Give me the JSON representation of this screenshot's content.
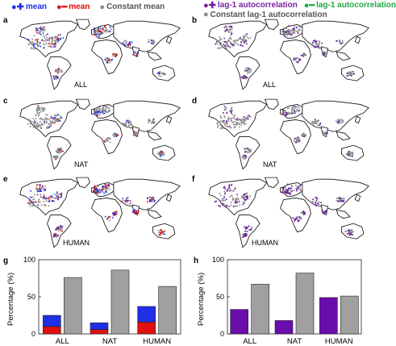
{
  "legend": {
    "left": [
      {
        "glyph": "●✚",
        "label": "mean",
        "color": "#1f2fe6"
      },
      {
        "glyph": "●━",
        "label": "mean",
        "color": "#e01010"
      },
      {
        "glyph": "●",
        "label": "Constant mean",
        "color": "#8c8c8c"
      }
    ],
    "right_row1": [
      {
        "glyph": "●✚",
        "label": "lag-1 autocorrelation",
        "color": "#7b1fa2"
      },
      {
        "glyph": "●━",
        "label": "lag-1 autocorrelation",
        "color": "#22aa44"
      }
    ],
    "right_row2": [
      {
        "glyph": "●",
        "label": "Constant lag-1 autocorrelation",
        "color": "#8c8c8c"
      }
    ]
  },
  "panels": [
    {
      "letter": "a",
      "scenario": "ALL",
      "variant": "mean"
    },
    {
      "letter": "b",
      "scenario": "ALL",
      "variant": "ac"
    },
    {
      "letter": "c",
      "scenario": "NAT",
      "variant": "mean"
    },
    {
      "letter": "d",
      "scenario": "NAT",
      "variant": "ac"
    },
    {
      "letter": "e",
      "scenario": "HUMAN",
      "variant": "mean"
    },
    {
      "letter": "f",
      "scenario": "HUMAN",
      "variant": "ac"
    }
  ],
  "colors": {
    "increase_mean": "#1f2fe6",
    "decrease_mean": "#e01010",
    "constant": "#8c8c8c",
    "increase_ac": "#6a1aa0",
    "bar_edge": "#222222"
  },
  "bar_panels": {
    "g": {
      "letter": "g",
      "ylabel": "Percentage (%)",
      "yticks": [
        "0",
        "50",
        "100"
      ]
    },
    "h": {
      "letter": "h",
      "ylabel": "Percentage (%)",
      "yticks": [
        "0",
        "50",
        "100"
      ]
    }
  },
  "chart_data": [
    {
      "type": "bar",
      "panel": "g",
      "categories": [
        "ALL",
        "NAT",
        "HUMAN"
      ],
      "ylabel": "Percentage (%)",
      "ylim": [
        0,
        100
      ],
      "series": [
        {
          "name": "decrease mean",
          "values": [
            10,
            6,
            16
          ],
          "color": "#e01010"
        },
        {
          "name": "increase mean",
          "values": [
            15,
            9,
            21
          ],
          "color": "#1f2fe6"
        },
        {
          "name": "Constant mean",
          "values": [
            76,
            86,
            64
          ],
          "color": "#a0a0a0"
        }
      ]
    },
    {
      "type": "bar",
      "panel": "h",
      "categories": [
        "ALL",
        "NAT",
        "HUMAN"
      ],
      "ylabel": "Percentage (%)",
      "ylim": [
        0,
        100
      ],
      "series": [
        {
          "name": "increase lag-1 autocorrelation",
          "values": [
            33,
            18,
            49
          ],
          "color": "#6a0dad"
        },
        {
          "name": "Constant lag-1 autocorrelation",
          "values": [
            67,
            82,
            51
          ],
          "color": "#a0a0a0"
        }
      ]
    }
  ]
}
